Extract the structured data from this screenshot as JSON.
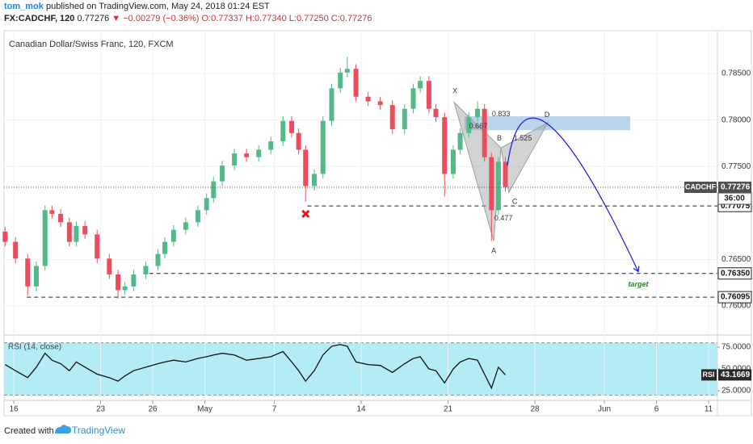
{
  "header": {
    "author": "tom_mok",
    "published": "published on TradingView.com, May 24, 2018 01:24 EST",
    "symbol": "FX:CADCHF, 120",
    "last": "0.77276",
    "change": "▼ −0.00279 (−0.36%)",
    "ohlc": [
      "O:0.77337",
      "H:0.77340",
      "L:0.77250",
      "C:0.77276"
    ]
  },
  "chart_data": [
    {
      "type": "candlestick",
      "title": "Canadian Dollar/Swiss Franc, 120, FXCM",
      "x": [
        -0.5,
        0.1,
        0.8,
        1.3,
        1.8,
        2.2,
        2.7,
        3.2,
        3.6,
        4.1,
        4.8,
        5.5,
        6,
        6.4,
        6.9,
        7.6,
        8.3,
        8.7,
        9.2,
        9.9,
        10.6,
        11.1,
        11.5,
        12,
        12.7,
        13.4,
        14.1,
        14.8,
        15.5,
        16,
        16.4,
        16.8,
        17.3,
        17.8,
        18.3,
        18.8,
        19.2,
        19.7,
        20.4,
        21.1,
        21.8,
        22.5,
        23,
        23.4,
        23.9,
        24.3,
        24.8,
        25.3,
        25.7,
        26.2,
        26.7,
        27.1,
        27.5,
        27.9,
        28.3
      ],
      "open": [
        0.768,
        0.7669,
        0.7651,
        0.7621,
        0.7643,
        0.7703,
        0.7699,
        0.769,
        0.7669,
        0.7686,
        0.7677,
        0.7651,
        0.7634,
        0.7617,
        0.7621,
        0.7634,
        0.7643,
        0.7656,
        0.7669,
        0.7682,
        0.769,
        0.7703,
        0.7716,
        0.7734,
        0.7751,
        0.7764,
        0.776,
        0.7768,
        0.7777,
        0.7799,
        0.7786,
        0.7768,
        0.7729,
        0.7742,
        0.7799,
        0.7834,
        0.7851,
        0.7855,
        0.7825,
        0.782,
        0.7816,
        0.779,
        0.7812,
        0.7834,
        0.7842,
        0.7812,
        0.7803,
        0.7742,
        0.7768,
        0.7786,
        0.7803,
        0.7812,
        0.776,
        0.7703,
        0.7755
      ],
      "high": [
        0.7685,
        0.7674,
        0.7656,
        0.7648,
        0.7708,
        0.7708,
        0.7704,
        0.7695,
        0.7691,
        0.7691,
        0.7682,
        0.7656,
        0.7639,
        0.7626,
        0.7639,
        0.7648,
        0.7661,
        0.7674,
        0.7687,
        0.7695,
        0.7708,
        0.7721,
        0.7739,
        0.7756,
        0.7769,
        0.7769,
        0.7773,
        0.7782,
        0.7804,
        0.7804,
        0.7791,
        0.7773,
        0.7747,
        0.7804,
        0.7839,
        0.7856,
        0.7868,
        0.786,
        0.783,
        0.7825,
        0.7821,
        0.7817,
        0.7839,
        0.7847,
        0.7847,
        0.7817,
        0.7808,
        0.7773,
        0.7791,
        0.7808,
        0.782,
        0.7817,
        0.7765,
        0.776,
        0.776
      ],
      "low": [
        0.7664,
        0.7646,
        0.7611,
        0.7616,
        0.7638,
        0.7694,
        0.7685,
        0.7664,
        0.7664,
        0.7672,
        0.7646,
        0.7629,
        0.7608,
        0.7612,
        0.7616,
        0.7629,
        0.7638,
        0.7651,
        0.7664,
        0.7677,
        0.7685,
        0.7698,
        0.7711,
        0.7729,
        0.7746,
        0.7755,
        0.7755,
        0.7763,
        0.7772,
        0.7781,
        0.7763,
        0.7712,
        0.7724,
        0.7737,
        0.7794,
        0.7829,
        0.7846,
        0.782,
        0.7815,
        0.7811,
        0.7785,
        0.7785,
        0.7807,
        0.7829,
        0.7807,
        0.7798,
        0.7718,
        0.7737,
        0.7763,
        0.7781,
        0.7798,
        0.7755,
        0.767,
        0.7698,
        0.7723
      ],
      "close": [
        0.7669,
        0.7651,
        0.7621,
        0.7643,
        0.7703,
        0.7699,
        0.769,
        0.7669,
        0.7686,
        0.7677,
        0.7651,
        0.7634,
        0.7617,
        0.7621,
        0.7634,
        0.7643,
        0.7656,
        0.7669,
        0.7682,
        0.769,
        0.7703,
        0.7716,
        0.7734,
        0.7751,
        0.7764,
        0.776,
        0.7768,
        0.7777,
        0.7799,
        0.7786,
        0.7768,
        0.7729,
        0.7742,
        0.7799,
        0.7834,
        0.7851,
        0.7855,
        0.7825,
        0.782,
        0.7816,
        0.779,
        0.7812,
        0.7834,
        0.7842,
        0.7812,
        0.7803,
        0.7742,
        0.7768,
        0.7786,
        0.7803,
        0.7812,
        0.776,
        0.7703,
        0.7755,
        0.7728
      ],
      "up_color": "#53b987",
      "down_color": "#eb4d5c",
      "xlim": [
        -0.56,
        40.51
      ],
      "xticks": [
        {
          "value": 0,
          "label": "16"
        },
        {
          "value": 5,
          "label": "23"
        },
        {
          "value": 8,
          "label": "26"
        },
        {
          "value": 11,
          "label": "May"
        },
        {
          "value": 15,
          "label": "7"
        },
        {
          "value": 20,
          "label": "14"
        },
        {
          "value": 25,
          "label": "21"
        },
        {
          "value": 30,
          "label": "28"
        },
        {
          "value": 34,
          "label": "Jun"
        },
        {
          "value": 37,
          "label": "6"
        },
        {
          "value": 40,
          "label": "11"
        }
      ],
      "ylim": [
        0.75714,
        0.7896
      ],
      "yticks": [
        {
          "value": 0.76,
          "label": "0.76000"
        },
        {
          "value": 0.765,
          "label": "0.76500"
        },
        {
          "value": 0.775,
          "label": "0.77500"
        },
        {
          "value": 0.78,
          "label": "0.78000"
        },
        {
          "value": 0.785,
          "label": "0.78500"
        }
      ],
      "grid": true,
      "symbol_label": "CADCHF",
      "last_price": 0.77276,
      "countdown": "36:00",
      "levels": [
        {
          "value": 0.77075,
          "from": 16.9
        },
        {
          "value": 0.7635,
          "label": "0.76350",
          "from": 7.8
        },
        {
          "value": 0.76095,
          "from": 0.75
        }
      ],
      "pattern": {
        "x": [
          25.35,
          27.63,
          28.05,
          28.5,
          30.74
        ],
        "y": [
          0.7819,
          0.767,
          0.777,
          0.7722,
          0.7797
        ],
        "color": "#9e9e9e"
      },
      "zone": {
        "x": [
          25.95,
          35.49
        ],
        "y": [
          0.7804,
          0.7789
        ],
        "color": "#a9c9e6"
      },
      "projection": {
        "x": [
          28.42,
          30.84,
          35.95
        ],
        "y": [
          0.7751,
          0.7794,
          0.7637
        ],
        "color": "#1a1ad6"
      },
      "marker": {
        "x": 16.8,
        "y": 0.7699,
        "color": "#e01b1b"
      },
      "annotations": [
        {
          "text": "X",
          "x": 25.4,
          "y": 0.7831
        },
        {
          "text": "A",
          "x": 27.63,
          "y": 0.7659
        },
        {
          "text": "B",
          "x": 27.95,
          "y": 0.778
        },
        {
          "text": "C",
          "x": 28.84,
          "y": 0.7712
        },
        {
          "text": "D",
          "x": 30.7,
          "y": 0.7805
        },
        {
          "text": "0.667",
          "x": 26.74,
          "y": 0.7793
        },
        {
          "text": "0.833",
          "x": 28.05,
          "y": 0.7806
        },
        {
          "text": "1.525",
          "x": 29.3,
          "y": 0.778
        },
        {
          "text": "0.477",
          "x": 28.19,
          "y": 0.7694
        },
        {
          "text": "target",
          "x": 35.95,
          "y": 0.7623,
          "color": "#2e7d32"
        }
      ]
    },
    {
      "type": "line",
      "title": "RSI (14, close)",
      "values": [
        55,
        48,
        40,
        52,
        68,
        60,
        56,
        48,
        58,
        52,
        44,
        40,
        36,
        42,
        48,
        52,
        56,
        58,
        60,
        58,
        62,
        64,
        66,
        68,
        66,
        60,
        62,
        64,
        70,
        58,
        48,
        36,
        48,
        66,
        76,
        78,
        76,
        58,
        55,
        54,
        46,
        56,
        62,
        64,
        50,
        48,
        34,
        50,
        58,
        62,
        60,
        44,
        28,
        52,
        43.1669
      ],
      "color": "#111111",
      "band": [
        20,
        80
      ],
      "band_color": "#b3ecf5",
      "ylim": [
        16.7,
        86.1
      ],
      "yticks": [
        {
          "value": 25,
          "label": "25.0000"
        },
        {
          "value": 50,
          "label": "50.0000"
        },
        {
          "value": 75,
          "label": "75.0000"
        }
      ],
      "last_label": "RSI"
    }
  ],
  "footer": {
    "created": "Created with",
    "brand": "TradingView"
  }
}
